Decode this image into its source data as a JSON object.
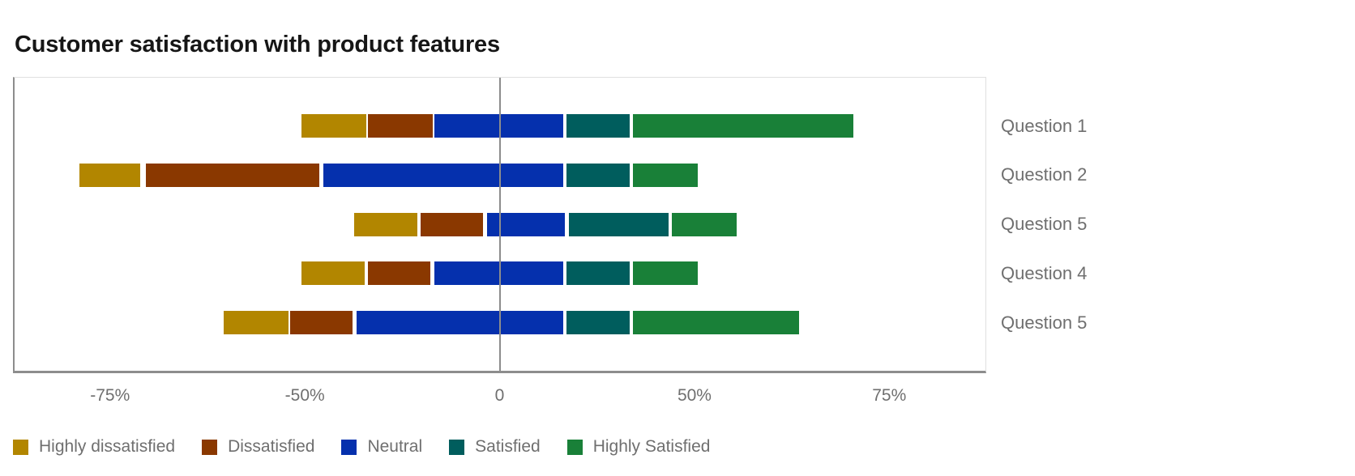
{
  "title": "Customer satisfaction with product features",
  "chart_data": {
    "type": "bar",
    "subtype": "diverging_stacked_horizontal_likert",
    "title": "Customer satisfaction with product features",
    "categories": [
      "Question 1",
      "Question 2",
      "Question 5",
      "Question 4",
      "Question 5"
    ],
    "series": [
      {
        "name": "Highly dissatisfied",
        "color": "#b28600"
      },
      {
        "name": "Dissatisfied",
        "color": "#8a3800"
      },
      {
        "name": "Neutral",
        "color": "#0530ad"
      },
      {
        "name": "Satisfied",
        "color": "#005d5d"
      },
      {
        "name": "Highly Satisfied",
        "color": "#198038"
      }
    ],
    "x_axis": {
      "unit": "%",
      "tick_labels": [
        "-75%",
        "-50%",
        "0",
        "50%",
        "75%"
      ],
      "tick_values": [
        -75,
        -50,
        0,
        50,
        75
      ],
      "tick_positions_pct": [
        9.83,
        29.9,
        49.96,
        70.03,
        90.09
      ],
      "ticks_equally_spaced": true,
      "zero_line": true,
      "grid": false
    },
    "category_label_position": "right",
    "rows": [
      {
        "label": "Question 1",
        "segments": [
          {
            "series": "Highly dissatisfied",
            "from": -50.5,
            "to": -34
          },
          {
            "series": "Dissatisfied",
            "from": -34,
            "to": -17
          },
          {
            "series": "Neutral",
            "from": -17,
            "to": 16.5
          },
          {
            "series": "Satisfied",
            "from": 17,
            "to": 33.5
          },
          {
            "series": "Highly Satisfied",
            "from": 34,
            "to": 70.5
          }
        ]
      },
      {
        "label": "Question 2",
        "segments": [
          {
            "series": "Highly dissatisfied",
            "from": -79,
            "to": -71
          },
          {
            "series": "Dissatisfied",
            "from": -70.5,
            "to": -46
          },
          {
            "series": "Neutral",
            "from": -45.5,
            "to": 16.5
          },
          {
            "series": "Satisfied",
            "from": 17,
            "to": 33.5
          },
          {
            "series": "Highly Satisfied",
            "from": 34,
            "to": 50.5
          }
        ]
      },
      {
        "label": "Question 5",
        "segments": [
          {
            "series": "Highly dissatisfied",
            "from": -37.5,
            "to": -21
          },
          {
            "series": "Dissatisfied",
            "from": -20.5,
            "to": -4
          },
          {
            "series": "Neutral",
            "from": -3.5,
            "to": 17
          },
          {
            "series": "Satisfied",
            "from": 17.5,
            "to": 43.5
          },
          {
            "series": "Highly Satisfied",
            "from": 44,
            "to": 55.5
          }
        ]
      },
      {
        "label": "Question 4",
        "segments": [
          {
            "series": "Highly dissatisfied",
            "from": -50.5,
            "to": -34.5
          },
          {
            "series": "Dissatisfied",
            "from": -34,
            "to": -17.5
          },
          {
            "series": "Neutral",
            "from": -17,
            "to": 16.5
          },
          {
            "series": "Satisfied",
            "from": 17,
            "to": 33.5
          },
          {
            "series": "Highly Satisfied",
            "from": 34,
            "to": 50.5
          }
        ]
      },
      {
        "label": "Question 5",
        "segments": [
          {
            "series": "Highly dissatisfied",
            "from": -60.5,
            "to": -52
          },
          {
            "series": "Dissatisfied",
            "from": -52,
            "to": -37.5
          },
          {
            "series": "Neutral",
            "from": -37,
            "to": 16.5
          },
          {
            "series": "Satisfied",
            "from": 17,
            "to": 33.5
          },
          {
            "series": "Highly Satisfied",
            "from": 34,
            "to": 63.5
          }
        ]
      }
    ],
    "legend": {
      "position": "bottom-left",
      "items": [
        "Highly dissatisfied",
        "Dissatisfied",
        "Neutral",
        "Satisfied",
        "Highly Satisfied"
      ]
    }
  },
  "colors": {
    "title_text": "#161616",
    "axis_text": "#6f6f6f",
    "axis_line": "#8d8d8d",
    "plot_border_light": "#e0e0e0",
    "segment_divider": "#ffffff",
    "background": "#ffffff"
  }
}
